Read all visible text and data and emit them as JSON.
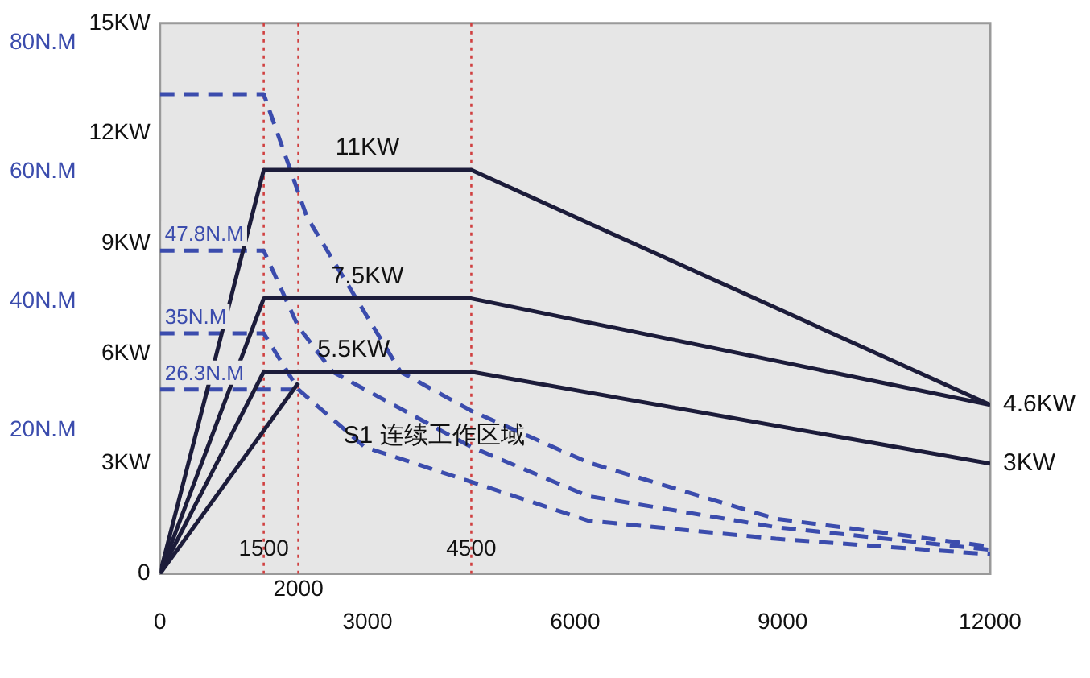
{
  "chart_data": {
    "type": "line",
    "xlim": [
      0,
      12000
    ],
    "xticks": [
      0,
      3000,
      6000,
      9000,
      12000
    ],
    "ylim": [
      0,
      15
    ],
    "yticks": [
      0,
      {
        "value": 3,
        "label": "3KW"
      },
      {
        "value": 6,
        "label": "6KW"
      },
      {
        "value": 9,
        "label": "9KW"
      },
      {
        "value": 12,
        "label": "12KW"
      },
      {
        "value": 15,
        "label": "15KW"
      }
    ],
    "y2lim": [
      -2.2,
      83
    ],
    "y2ticks": [
      {
        "value": 20,
        "label": "20N.M"
      },
      {
        "value": 40,
        "label": "40N.M"
      },
      {
        "value": 60,
        "label": "60N.M"
      },
      {
        "value": 80,
        "label": "80N.M"
      }
    ],
    "series": [
      {
        "color": "#1c1c3a",
        "x": [
          0,
          1500,
          4500,
          12000
        ],
        "values": [
          0,
          11,
          11,
          4.6
        ]
      },
      {
        "color": "#1c1c3a",
        "x": [
          0,
          1500,
          4500,
          12000
        ],
        "values": [
          0,
          7.5,
          7.5,
          4.6
        ]
      },
      {
        "color": "#1c1c3a",
        "x": [
          0,
          1500,
          4500,
          12000
        ],
        "values": [
          0,
          5.5,
          5.5,
          3
        ]
      },
      {
        "color": "#1c1c3a",
        "x": [
          0,
          2000
        ],
        "values": [
          0,
          5.2
        ]
      },
      {
        "color": "#3b4cad",
        "axis": "y2",
        "line_style": "dashed",
        "x": [
          0,
          1500,
          2124,
          3480,
          4500,
          6190,
          8900,
          12000
        ],
        "values": [
          72,
          72,
          53,
          29,
          23,
          15,
          6.3,
          2
        ]
      },
      {
        "color": "#3b4cad",
        "axis": "y2",
        "line_style": "dashed",
        "x": [
          0,
          1500,
          2000,
          2500,
          4500,
          6190,
          8900,
          12000
        ],
        "values": [
          47.8,
          47.8,
          36,
          29,
          17.4,
          9.8,
          5,
          1.5
        ],
        "value_labels": [
          "47.8N.M",
          null,
          null,
          null,
          null,
          null,
          null,
          null
        ]
      },
      {
        "color": "#3b4cad",
        "axis": "y2",
        "line_style": "dashed",
        "x": [
          0,
          1500,
          2000,
          2960,
          4500,
          6190,
          8900,
          12000
        ],
        "values": [
          35,
          35,
          26.3,
          17.4,
          12,
          6,
          3.2,
          0.8
        ],
        "value_labels": [
          "35N.M",
          null,
          null,
          null,
          null,
          null,
          null,
          null
        ]
      },
      {
        "color": "#3b4cad",
        "axis": "y2",
        "line_style": "dashed",
        "x": [
          0,
          2000
        ],
        "values": [
          26.3,
          26.3
        ],
        "value_labels": [
          "26.3N.M",
          null
        ]
      }
    ],
    "ref_lines": [
      {
        "axis": "x",
        "value": 1500,
        "label": "1500",
        "color": "#d04040",
        "line_style": "dotted"
      },
      {
        "axis": "x",
        "value": 2000,
        "label": "2000",
        "color": "#d04040",
        "line_style": "dotted"
      },
      {
        "axis": "x",
        "value": 4500,
        "label": "4500",
        "color": "#d04040",
        "line_style": "dotted"
      }
    ],
    "annotations": [
      {
        "text": "11KW",
        "x": 3000,
        "y": 11
      },
      {
        "text": "7.5KW",
        "x": 3000,
        "y": 7.5
      },
      {
        "text": "5.5KW",
        "x": 2800,
        "y": 5.5
      },
      {
        "text": "4.6KW",
        "x": 12000,
        "y": 4.6
      },
      {
        "text": "3KW",
        "x": 12000,
        "y": 3
      },
      "S1 连续工作区域"
    ],
    "grid": false,
    "legend": false,
    "marker": "none"
  }
}
